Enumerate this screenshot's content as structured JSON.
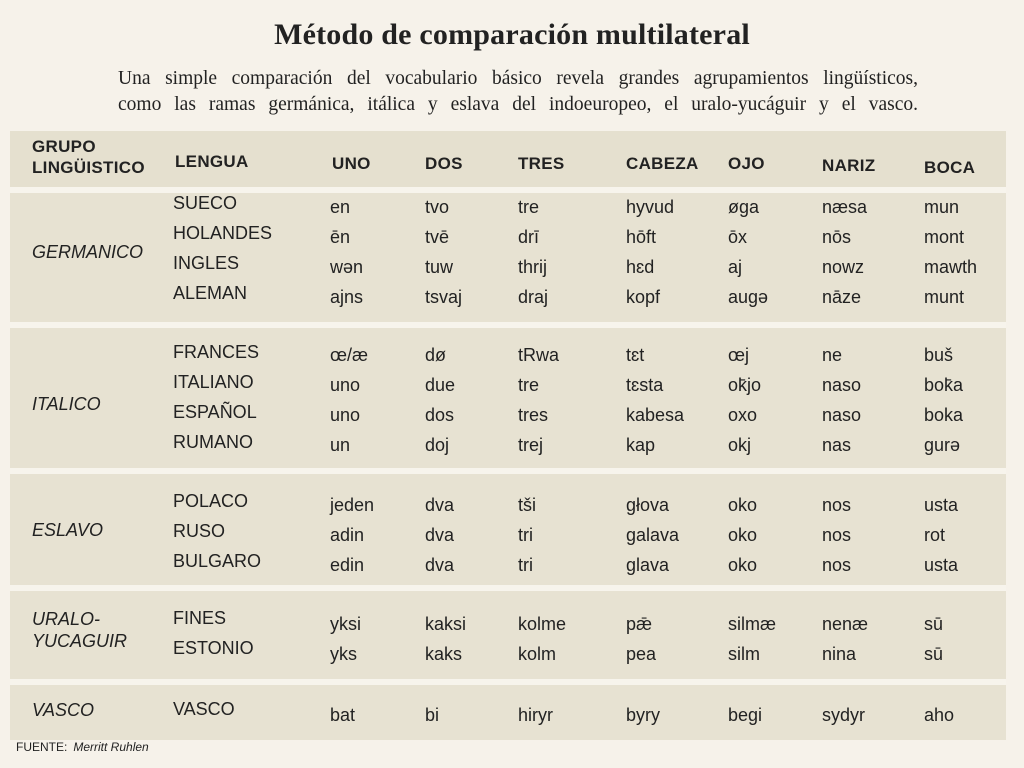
{
  "title": "Método de comparación multilateral",
  "subtitle": [
    "Una simple comparación del vocabulario básico revela grandes agrupamientos lingüísticos,",
    "como las ramas germánica, itálica y eslava del indoeuropeo, el uralo-yucáguir y el vasco."
  ],
  "headers": {
    "group_line1": "GRUPO",
    "group_line2": "LINGÜISTICO",
    "language": "LENGUA",
    "words": [
      "UNO",
      "DOS",
      "TRES",
      "CABEZA",
      "OJO",
      "NARIZ",
      "BOCA"
    ]
  },
  "groups": [
    {
      "name": [
        "GERMANICO"
      ],
      "rows": [
        {
          "lang": "SUECO",
          "words": [
            "en",
            "tvo",
            "tre",
            "hyvud",
            "øga",
            "næsa",
            "mun"
          ]
        },
        {
          "lang": "HOLANDES",
          "words": [
            "ēn",
            "tvē",
            "drī",
            "hōft",
            "ōx",
            "nōs",
            "mont"
          ]
        },
        {
          "lang": "INGLES",
          "words": [
            "wən",
            "tuw",
            "thrij",
            "hɛd",
            "aj",
            "nowz",
            "mawth"
          ]
        },
        {
          "lang": "ALEMAN",
          "words": [
            "ajns",
            "tsvaj",
            "draj",
            "kopf",
            "augə",
            "nāze",
            "munt"
          ]
        }
      ]
    },
    {
      "name": [
        "ITALICO"
      ],
      "rows": [
        {
          "lang": "FRANCES",
          "words": [
            "œ/æ",
            "dø",
            "tRwa",
            "tɛt",
            "œj",
            "ne",
            "buš"
          ]
        },
        {
          "lang": "ITALIANO",
          "words": [
            "uno",
            "due",
            "tre",
            "tɛsta",
            "ok̄jo",
            "naso",
            "bok̄a"
          ]
        },
        {
          "lang": "ESPAÑOL",
          "words": [
            "uno",
            "dos",
            "tres",
            "kabesa",
            "oxo",
            "naso",
            "boka"
          ]
        },
        {
          "lang": "RUMANO",
          "words": [
            "un",
            "doj",
            "trej",
            "kap",
            "okj",
            "nas",
            "gurə"
          ]
        }
      ]
    },
    {
      "name": [
        "ESLAVO"
      ],
      "rows": [
        {
          "lang": "POLACO",
          "words": [
            "jeden",
            "dva",
            "tši",
            "głova",
            "oko",
            "nos",
            "usta"
          ]
        },
        {
          "lang": "RUSO",
          "words": [
            "adin",
            "dva",
            "tri",
            "galava",
            "oko",
            "nos",
            "rot"
          ]
        },
        {
          "lang": "BULGARO",
          "words": [
            "edin",
            "dva",
            "tri",
            "glava",
            "oko",
            "nos",
            "usta"
          ]
        }
      ]
    },
    {
      "name": [
        "URALO-",
        "YUCAGUIR"
      ],
      "rows": [
        {
          "lang": "FINES",
          "words": [
            "yksi",
            "kaksi",
            "kolme",
            "pǣ",
            "silmæ",
            "nenæ",
            "sū"
          ]
        },
        {
          "lang": "ESTONIO",
          "words": [
            "yks",
            "kaks",
            "kolm",
            "pea",
            "silm",
            "nina",
            "sū"
          ]
        }
      ]
    },
    {
      "name": [
        "VASCO"
      ],
      "rows": [
        {
          "lang": "VASCO",
          "words": [
            "bat",
            "bi",
            "hiryr",
            "byry",
            "begi",
            "sydyr",
            "aho"
          ]
        }
      ]
    }
  ],
  "footer": {
    "label": "FUENTE:",
    "source": "Merritt Ruhlen"
  }
}
